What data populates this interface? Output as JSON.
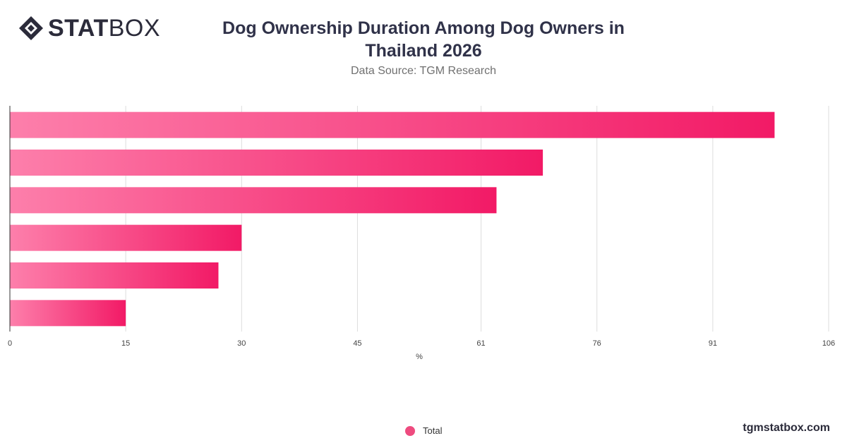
{
  "brand": {
    "logo_bold": "STAT",
    "logo_light": "BOX",
    "credit": "tgmstatbox.com"
  },
  "header": {
    "title": "Dog Ownership Duration Among Dog Owners in Thailand 2026",
    "subtitle": "Data Source: TGM Research"
  },
  "legend": {
    "label": "Total"
  },
  "colors": {
    "bar_start": "#fd7fab",
    "bar_end": "#f21a66",
    "grid": "#dddddd",
    "axis": "#333333"
  },
  "chart_data": {
    "type": "bar",
    "orientation": "horizontal",
    "categories": [
      "",
      "",
      "",
      "",
      "",
      ""
    ],
    "series": [
      {
        "name": "Total",
        "values": [
          99,
          69,
          63,
          30,
          27,
          15
        ]
      }
    ],
    "xlabel": "%",
    "xticks": [
      0,
      15,
      30,
      45,
      61,
      76,
      91,
      106
    ],
    "xlim": [
      0,
      106
    ],
    "grid": true,
    "legend_position": "bottom"
  }
}
